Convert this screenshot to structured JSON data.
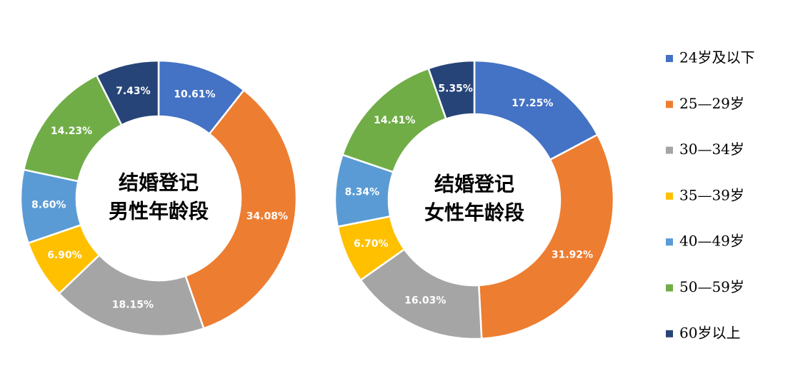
{
  "chart_data": [
    {
      "type": "pie",
      "title": [
        "结婚登记",
        "男性年龄段"
      ],
      "categories": [
        "24岁及以下",
        "25—29岁",
        "30—34岁",
        "35—39岁",
        "40—49岁",
        "50—59岁",
        "60岁以上"
      ],
      "colors": [
        "#4472c4",
        "#ed7d31",
        "#a5a5a5",
        "#ffc000",
        "#5b9bd5",
        "#70ad47",
        "#264478"
      ],
      "values": [
        10.61,
        34.08,
        18.15,
        6.9,
        8.6,
        14.23,
        7.43
      ],
      "value_labels": [
        "10.61%",
        "34.08%",
        "18.15%",
        "6.90%",
        "8.60%",
        "14.23%",
        "7.43%"
      ],
      "legend": true
    },
    {
      "type": "pie",
      "title": [
        "结婚登记",
        "女性年龄段"
      ],
      "categories": [
        "24岁及以下",
        "25—29岁",
        "30—34岁",
        "35—39岁",
        "40—49岁",
        "50—59岁",
        "60岁以上"
      ],
      "colors": [
        "#4472c4",
        "#ed7d31",
        "#a5a5a5",
        "#ffc000",
        "#5b9bd5",
        "#70ad47",
        "#264478"
      ],
      "values": [
        17.25,
        31.92,
        16.03,
        6.7,
        8.34,
        14.41,
        5.35
      ],
      "value_labels": [
        "17.25%",
        "31.92%",
        "16.03%",
        "6.70%",
        "8.34%",
        "14.41%",
        "5.35%"
      ],
      "legend": false
    }
  ]
}
